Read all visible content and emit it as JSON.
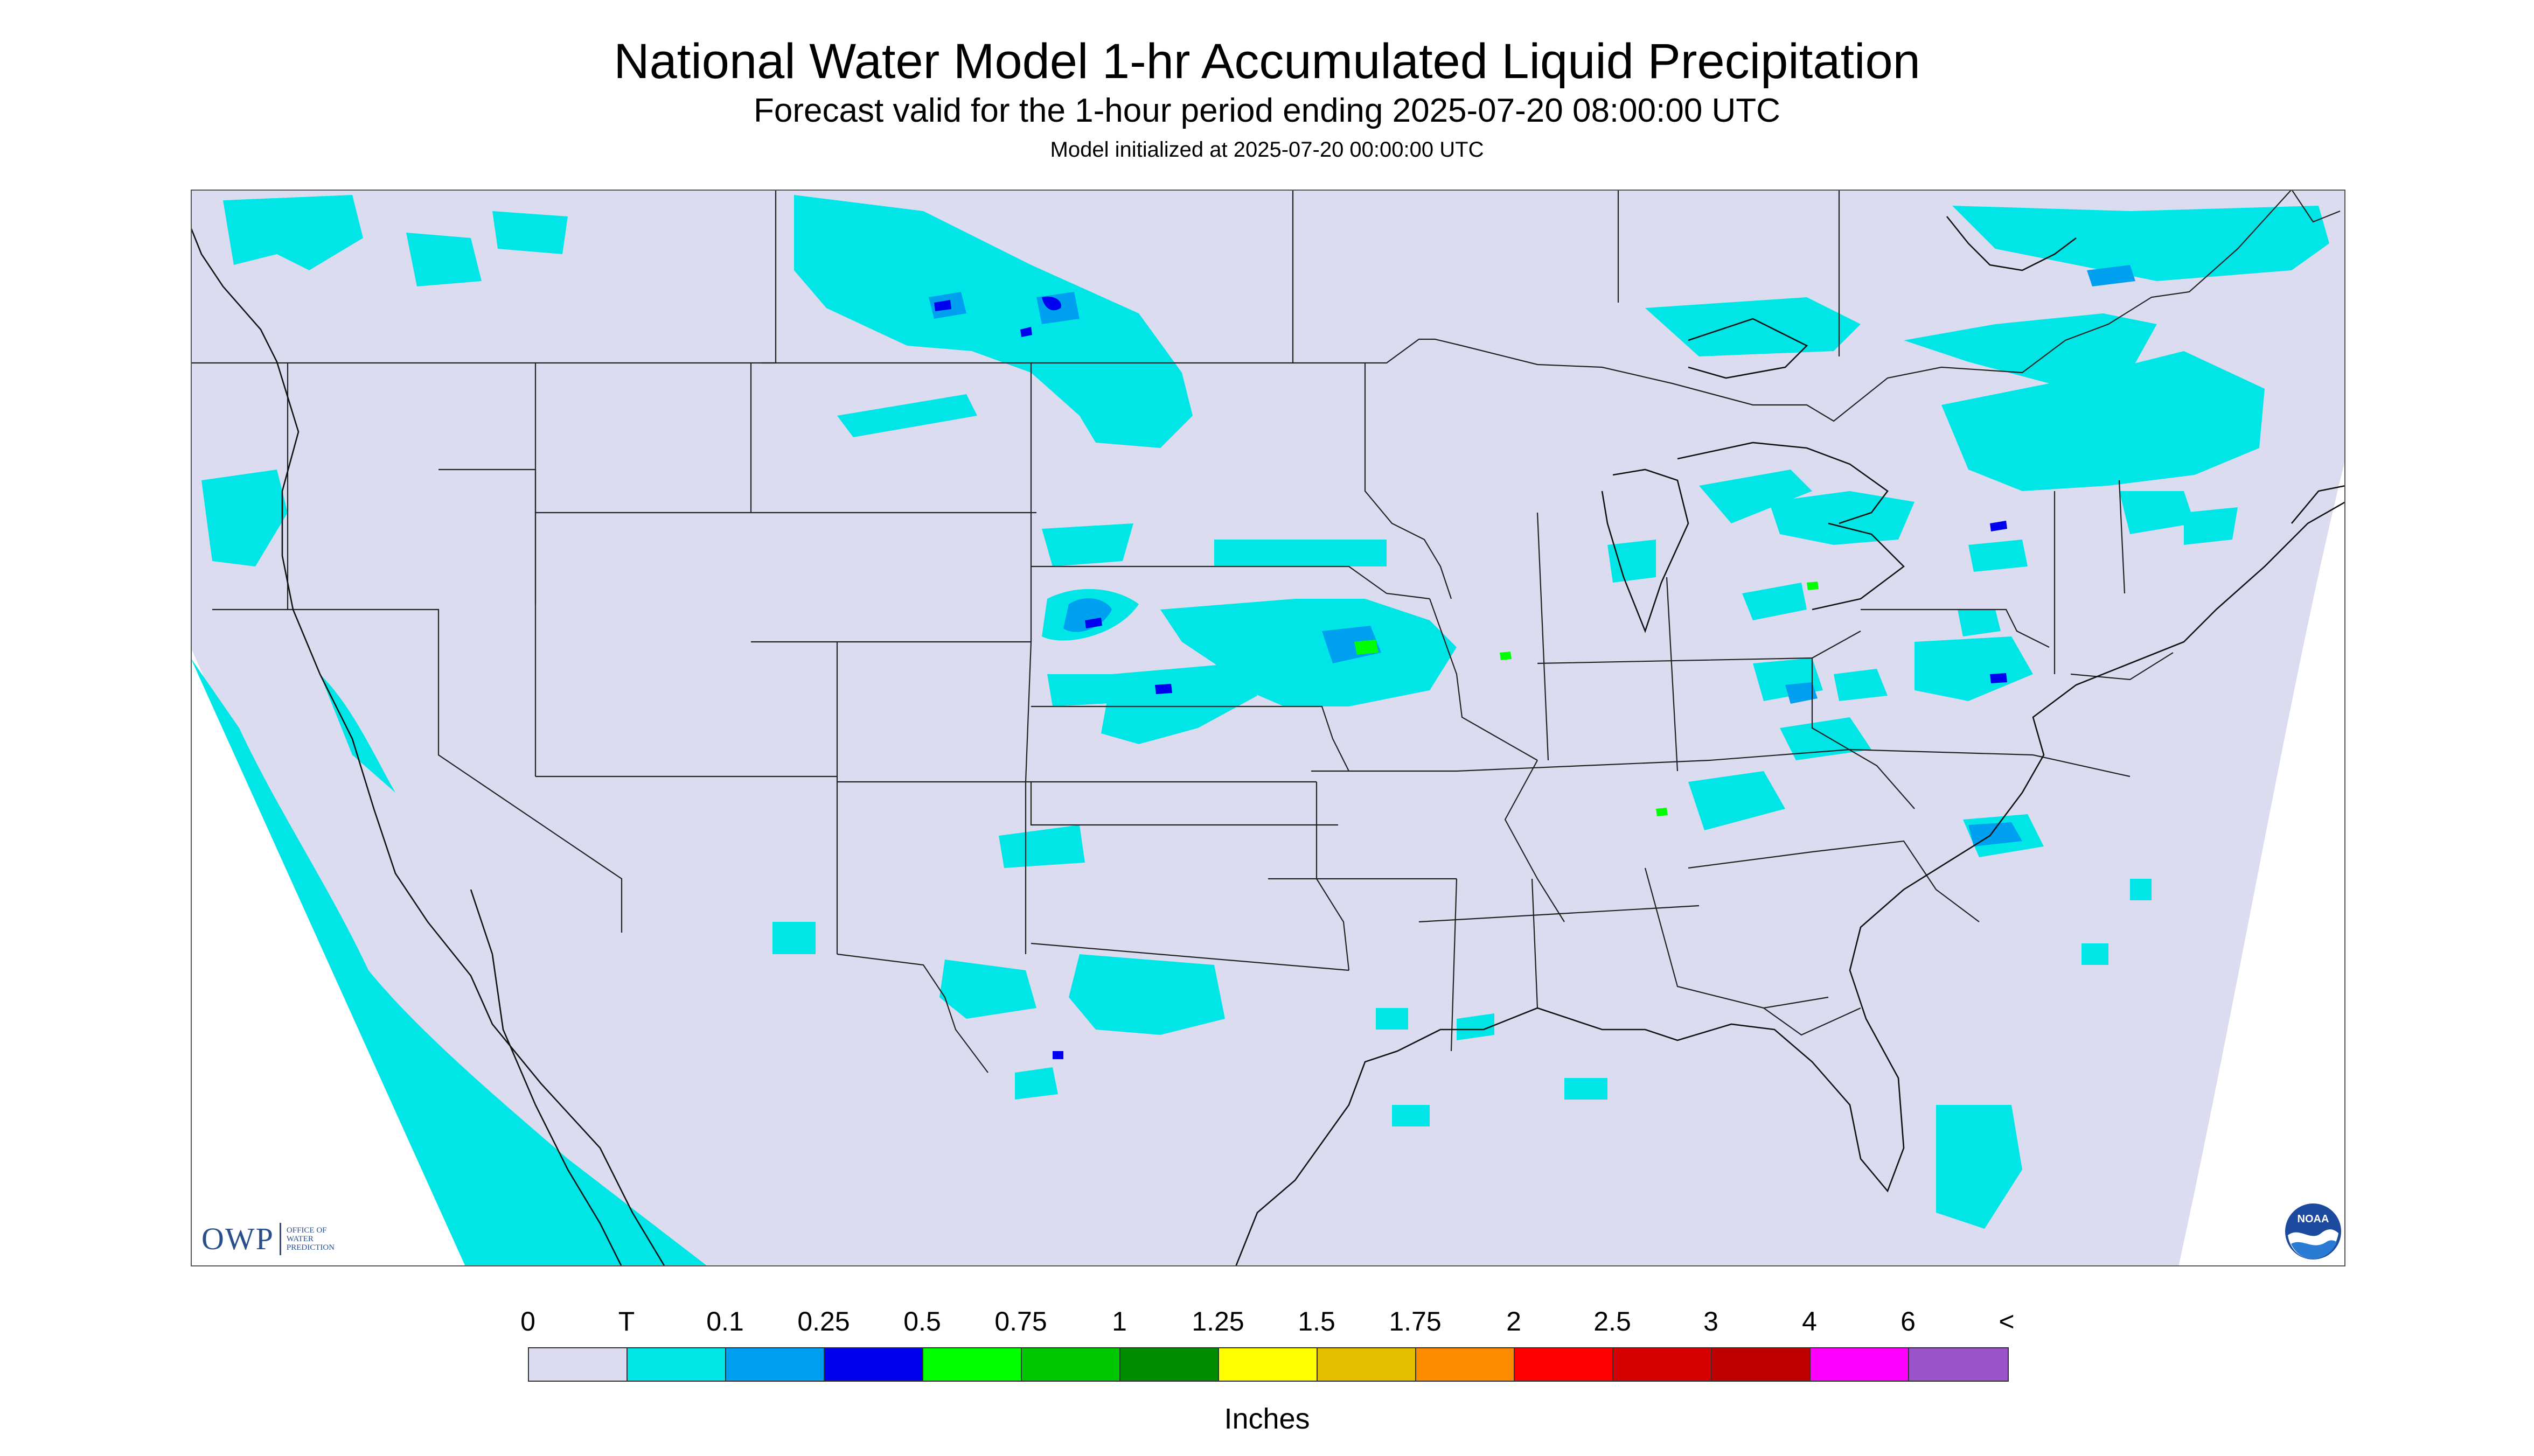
{
  "header": {
    "title": "National Water Model 1-hr Accumulated Liquid Precipitation",
    "subtitle": "Forecast valid for the 1-hour period ending 2025-07-20 08:00:00 UTC",
    "init_line": "Model initialized at 2025-07-20 00:00:00 UTC"
  },
  "logos": {
    "owp_letters": "OWP",
    "owp_line1": "OFFICE OF",
    "owp_line2": "WATER",
    "owp_line3": "PREDICTION",
    "noaa_text": "NOAA"
  },
  "legend": {
    "ticks": [
      "0",
      "T",
      "0.1",
      "0.25",
      "0.5",
      "0.75",
      "1",
      "1.25",
      "1.5",
      "1.75",
      "2",
      "2.5",
      "3",
      "4",
      "6",
      "<"
    ],
    "colors": [
      "#dcdcf0",
      "#00e6e6",
      "#00a0f0",
      "#0000f0",
      "#00ff00",
      "#00c800",
      "#008c00",
      "#ffff00",
      "#e6be00",
      "#ff8c00",
      "#ff0000",
      "#d70000",
      "#be0000",
      "#ff00ff",
      "#9a55c8"
    ],
    "units": "Inches"
  },
  "map_colors": {
    "background": "#dcdcf0",
    "trace": "#00e6e6",
    "light": "#00a0f0",
    "moderate": "#0000f0",
    "heavy": "#00ff00",
    "boundary": "#222222"
  }
}
